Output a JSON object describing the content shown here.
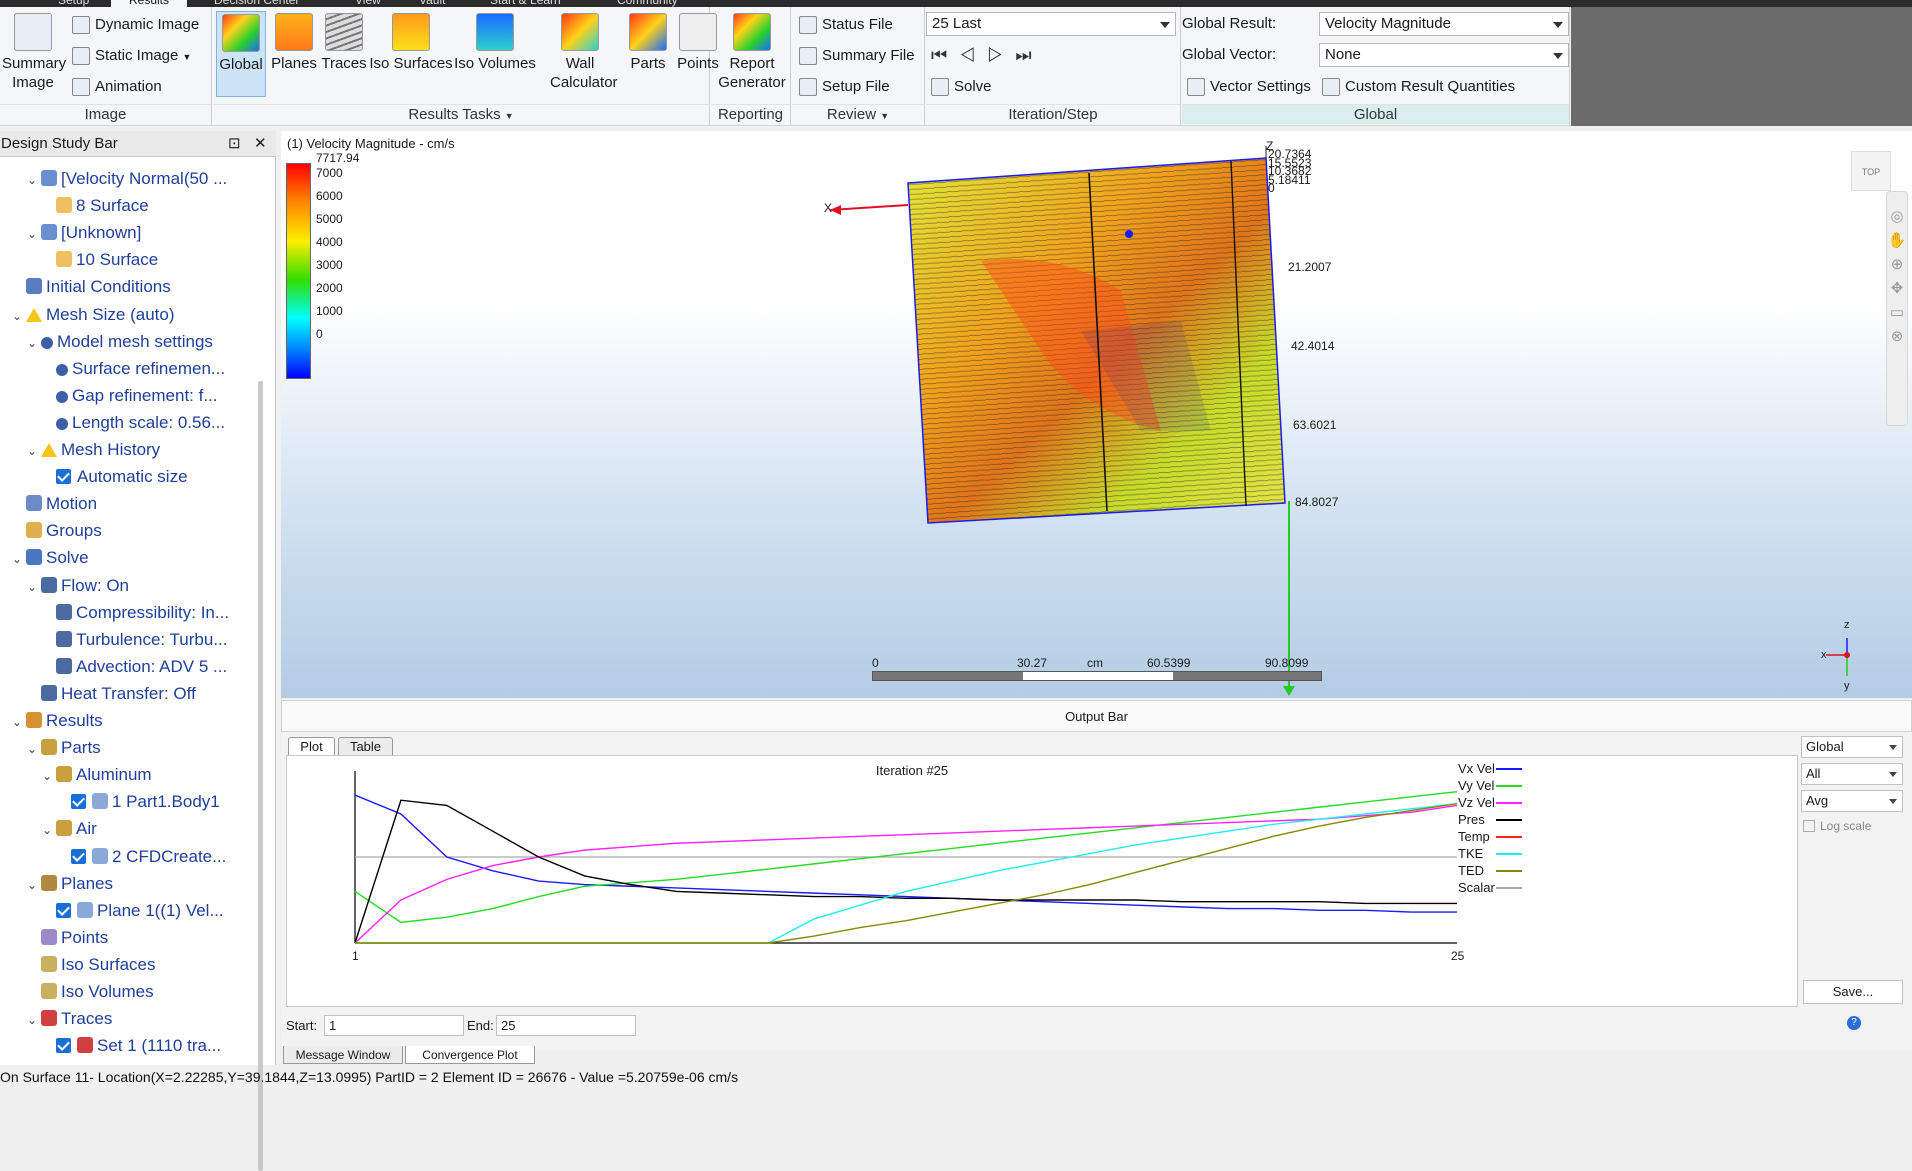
{
  "top_tabs": [
    "Setup",
    "Results",
    "Decision Center",
    "View",
    "Vault",
    "Start & Learn",
    "Community"
  ],
  "ribbon": {
    "image": {
      "label": "Image",
      "summary_image": "Summary Image",
      "dynamic_image": "Dynamic Image",
      "static_image": "Static Image",
      "animation": "Animation"
    },
    "results_tasks": {
      "label": "Results Tasks",
      "buttons": [
        "Global",
        "Planes",
        "Traces",
        "Iso Surfaces",
        "Iso Volumes",
        "Wall Calculator",
        "Parts",
        "Points"
      ]
    },
    "reporting": {
      "label": "Reporting",
      "report_generator": "Report Generator"
    },
    "review": {
      "label": "Review",
      "status_file": "Status File",
      "summary_file": "Summary File",
      "setup_file": "Setup File"
    },
    "iteration": {
      "label": "Iteration/Step",
      "step_value": "25 Last",
      "solve": "Solve"
    },
    "global": {
      "label": "Global",
      "result_label": "Global Result:",
      "result_value": "Velocity Magnitude",
      "vector_label": "Global Vector:",
      "vector_value": "None",
      "vector_settings": "Vector Settings",
      "custom_quantities": "Custom Result Quantities"
    }
  },
  "design_bar": {
    "title": "Design Study Bar",
    "rows": [
      {
        "text": "[Velocity Normal(50 ...",
        "level": 2,
        "chev": "v",
        "icon": "plane-result"
      },
      {
        "text": "8 Surface",
        "level": 3,
        "chev": "",
        "icon": "surface"
      },
      {
        "text": "[Unknown]",
        "level": 2,
        "chev": "v",
        "icon": "plane-result"
      },
      {
        "text": "10 Surface",
        "level": 3,
        "chev": "",
        "icon": "surface"
      },
      {
        "text": "Initial Conditions",
        "level": 1,
        "chev": "",
        "icon": "initial"
      },
      {
        "text": "Mesh Size (auto)",
        "level": 1,
        "chev": "v",
        "icon": "warning"
      },
      {
        "text": "Model mesh settings",
        "level": 2,
        "chev": "v",
        "icon": "info"
      },
      {
        "text": "Surface refinemen...",
        "level": 3,
        "chev": "",
        "icon": "info"
      },
      {
        "text": "Gap refinement: f...",
        "level": 3,
        "chev": "",
        "icon": "info"
      },
      {
        "text": "Length scale: 0.56...",
        "level": 3,
        "chev": "",
        "icon": "info"
      },
      {
        "text": "Mesh History",
        "level": 2,
        "chev": "v",
        "icon": "warning"
      },
      {
        "text": "Automatic size",
        "level": 3,
        "chev": "",
        "icon": "check"
      },
      {
        "text": "Motion",
        "level": 1,
        "chev": "",
        "icon": "motion"
      },
      {
        "text": "Groups",
        "level": 1,
        "chev": "",
        "icon": "groups"
      },
      {
        "text": "Solve",
        "level": 1,
        "chev": "v",
        "icon": "solve"
      },
      {
        "text": "Flow: On",
        "level": 2,
        "chev": "v",
        "icon": "setting"
      },
      {
        "text": "Compressibility: In...",
        "level": 3,
        "chev": "",
        "icon": "setting"
      },
      {
        "text": "Turbulence: Turbu...",
        "level": 3,
        "chev": "",
        "icon": "setting"
      },
      {
        "text": "Advection: ADV 5 ...",
        "level": 3,
        "chev": "",
        "icon": "setting"
      },
      {
        "text": "Heat Transfer: Off",
        "level": 2,
        "chev": "",
        "icon": "setting"
      },
      {
        "text": "Results",
        "level": 1,
        "chev": "v",
        "icon": "results"
      },
      {
        "text": "Parts",
        "level": 2,
        "chev": "v",
        "icon": "parts"
      },
      {
        "text": "Aluminum",
        "level": 3,
        "chev": "v",
        "icon": "material"
      },
      {
        "text": "1 Part1.Body1",
        "level": 4,
        "chev": "",
        "icon": "check-body"
      },
      {
        "text": "Air",
        "level": 3,
        "chev": "v",
        "icon": "material"
      },
      {
        "text": "2 CFDCreate...",
        "level": 4,
        "chev": "",
        "icon": "check-body"
      },
      {
        "text": "Planes",
        "level": 2,
        "chev": "v",
        "icon": "planes"
      },
      {
        "text": "Plane 1((1) Vel...",
        "level": 3,
        "chev": "",
        "icon": "check-plane"
      },
      {
        "text": "Points",
        "level": 2,
        "chev": "",
        "icon": "points"
      },
      {
        "text": "Iso Surfaces",
        "level": 2,
        "chev": "",
        "icon": "iso"
      },
      {
        "text": "Iso Volumes",
        "level": 2,
        "chev": "",
        "icon": "iso"
      },
      {
        "text": "Traces",
        "level": 2,
        "chev": "v",
        "icon": "traces"
      },
      {
        "text": "Set 1 (1110 tra...",
        "level": 3,
        "chev": "",
        "icon": "check-traces"
      }
    ]
  },
  "viewport": {
    "title": "(1) Velocity Magnitude - cm/s",
    "legend_max": "7717.94",
    "legend_ticks": [
      "7000",
      "6000",
      "5000",
      "4000",
      "3000",
      "2000",
      "1000",
      "0"
    ],
    "z_axis_label": "Z",
    "x_axis_label": "X",
    "z_values": [
      "20.7364",
      "15.5523",
      "10.3682",
      "5.18411",
      "0"
    ],
    "depth_values": [
      "21.2007",
      "42.4014",
      "63.6021",
      "84.8027"
    ],
    "scale_values": [
      "0",
      "30.27",
      "cm",
      "60.5399",
      "90.8099"
    ],
    "viewcube_label": "TOP",
    "triad": {
      "x": "x",
      "y": "y",
      "z": "z"
    }
  },
  "output_bar": {
    "title": "Output Bar",
    "tabs": [
      "Plot",
      "Table"
    ],
    "plot_title": "Iteration #25",
    "x_start_label": "1",
    "x_end_label": "25",
    "start_label": "Start:",
    "start_value": "1",
    "end_label": "End:",
    "end_value": "25",
    "legend": [
      {
        "name": "Vx Vel",
        "color": "#1a1aff"
      },
      {
        "name": "Vy Vel",
        "color": "#22dd22"
      },
      {
        "name": "Vz Vel",
        "color": "#ff22ff"
      },
      {
        "name": "Pres",
        "color": "#000000"
      },
      {
        "name": "Temp",
        "color": "#ff2222"
      },
      {
        "name": "TKE",
        "color": "#22eeee"
      },
      {
        "name": "TED",
        "color": "#888800"
      },
      {
        "name": "Scalar",
        "color": "#aaaaaa"
      }
    ],
    "dropdowns": [
      "Global",
      "All",
      "Avg"
    ],
    "log_scale": "Log scale",
    "save": "Save...",
    "bottom_tabs": [
      "Message Window",
      "Convergence Plot"
    ]
  },
  "status": "On Surface 11- Location(X=2.22285,Y=39.1844,Z=13.0995) PartID = 2 Element ID = 26676 - Value =5.20759e-06  cm/s"
}
